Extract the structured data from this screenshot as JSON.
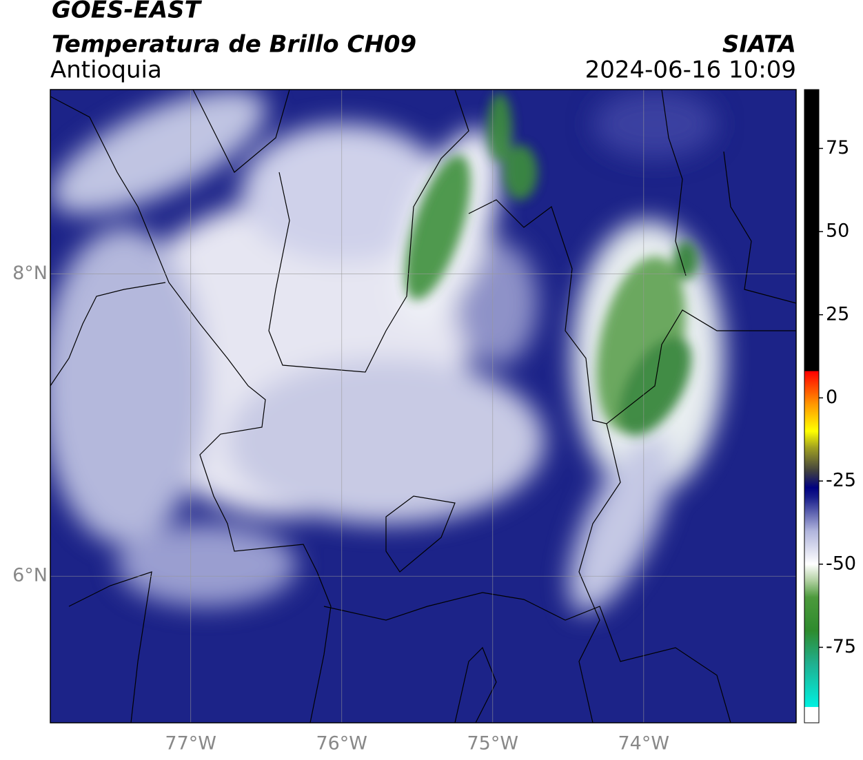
{
  "header": {
    "title": "GOES-EAST",
    "subtitle": "Temperatura de Brillo CH09",
    "region": "Antioquia",
    "source": "SIATA",
    "datetime": "2024-06-16 10:09"
  },
  "map": {
    "lonlim": [
      -77.93,
      -72.99
    ],
    "latlim": [
      5.03,
      9.22
    ],
    "xticks": [
      {
        "value": -77,
        "label": "77°W"
      },
      {
        "value": -76,
        "label": "76°W"
      },
      {
        "value": -75,
        "label": "75°W"
      },
      {
        "value": -74,
        "label": "74°W"
      }
    ],
    "yticks": [
      {
        "value": 8,
        "label": "8°N"
      },
      {
        "value": 6,
        "label": "6°N"
      }
    ],
    "grid": true
  },
  "colorbar": {
    "clim": [
      -97.7,
      92.7
    ],
    "ticks": [
      75,
      50,
      25,
      0,
      -25,
      -50,
      -75
    ],
    "stops": [
      [
        -97.7,
        "#ffffff"
      ],
      [
        -93,
        "#ffffff"
      ],
      [
        -92.9,
        "#00f0e0"
      ],
      [
        -80,
        "#20b090"
      ],
      [
        -70,
        "#2e8b2e"
      ],
      [
        -60,
        "#4c9a3c"
      ],
      [
        -55,
        "#b0d0a0"
      ],
      [
        -50,
        "#ffffff"
      ],
      [
        -40,
        "#b0b4dc"
      ],
      [
        -30,
        "#1a1f8c"
      ],
      [
        -27,
        "#000080"
      ],
      [
        -22,
        "#404040"
      ],
      [
        -15,
        "#a0a020"
      ],
      [
        -10,
        "#ffff00"
      ],
      [
        -2,
        "#ff9900"
      ],
      [
        8,
        "#ff0000"
      ],
      [
        8.1,
        "#000000"
      ],
      [
        92.7,
        "#000000"
      ]
    ]
  }
}
